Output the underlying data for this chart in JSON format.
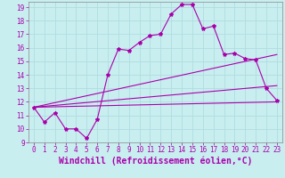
{
  "xlabel": "Windchill (Refroidissement éolien,°C)",
  "background_color": "#c8eef0",
  "grid_color": "#b0dde0",
  "line_color": "#aa00aa",
  "spine_color": "#888888",
  "xlim": [
    -0.5,
    23.5
  ],
  "ylim": [
    9,
    19.4
  ],
  "xticks": [
    0,
    1,
    2,
    3,
    4,
    5,
    6,
    7,
    8,
    9,
    10,
    11,
    12,
    13,
    14,
    15,
    16,
    17,
    18,
    19,
    20,
    21,
    22,
    23
  ],
  "yticks": [
    9,
    10,
    11,
    12,
    13,
    14,
    15,
    16,
    17,
    18,
    19
  ],
  "main_x": [
    0,
    1,
    2,
    3,
    4,
    5,
    6,
    7,
    8,
    9,
    10,
    11,
    12,
    13,
    14,
    15,
    16,
    17,
    18,
    19,
    20,
    21,
    22,
    23
  ],
  "main_y": [
    11.6,
    10.5,
    11.2,
    10.0,
    10.0,
    9.3,
    10.7,
    14.0,
    15.9,
    15.8,
    16.4,
    16.9,
    17.0,
    18.5,
    19.2,
    19.2,
    17.4,
    17.6,
    15.5,
    15.6,
    15.2,
    15.1,
    13.0,
    12.1
  ],
  "trend1_x": [
    0,
    23
  ],
  "trend1_y": [
    11.6,
    15.5
  ],
  "trend2_x": [
    0,
    23
  ],
  "trend2_y": [
    11.6,
    13.2
  ],
  "trend3_x": [
    0,
    23
  ],
  "trend3_y": [
    11.6,
    12.0
  ],
  "tick_fontsize": 5.5,
  "label_fontsize": 7.0
}
